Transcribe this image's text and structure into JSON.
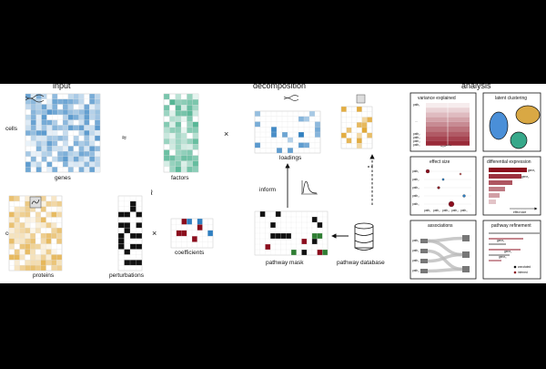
{
  "sections": {
    "input": "input",
    "decomposition": "decomposition",
    "analysis": "analysis"
  },
  "labels": {
    "cells_top": "cells",
    "cells_bottom": "cells",
    "genes": "genes",
    "factors": "factors",
    "proteins": "proteins",
    "perturbations": "perturbations",
    "coefficients": "coefficients",
    "loadings": "loadings",
    "inform": "inform",
    "pathway_mask": "pathway mask",
    "pathway_database": "pathway database"
  },
  "operators": {
    "approx": "≈",
    "times1": "×",
    "times2": "×",
    "coupled": "≀"
  },
  "panels": {
    "variance": {
      "title": "variance explained",
      "ylabels": [
        "path₁",
        "...",
        "path₂",
        "path₃",
        "path₄",
        "path₅"
      ]
    },
    "clustering": {
      "title": "latent clustering"
    },
    "effect": {
      "title": "effect size",
      "ylabels": [
        "path₁",
        "path₂",
        "path₃",
        "path₄",
        "path₅"
      ],
      "xlabels": [
        "path₁",
        "path₂",
        "path₃",
        "path₄",
        "path₅"
      ]
    },
    "diffexp": {
      "title": "differential expression",
      "bar_labels": [
        "gene₁",
        "gene₂"
      ],
      "legend": "effect size"
    },
    "assoc": {
      "title": "associations",
      "labels": [
        "path₁",
        "path₂",
        "path₃",
        "path₄"
      ]
    },
    "refine": {
      "title": "pathway refinement",
      "labels": [
        "gene₁",
        "gene₂",
        "gene₃"
      ],
      "legend": [
        "annotated",
        "inferred"
      ]
    }
  },
  "colors": {
    "blue": "#2f7fc1",
    "teal": "#2aa37a",
    "gold": "#e0a530",
    "red": "#8b0d1d",
    "cluster_blue": "#4a8fd8",
    "cluster_gold": "#d9a844",
    "cluster_teal": "#37a88a"
  }
}
